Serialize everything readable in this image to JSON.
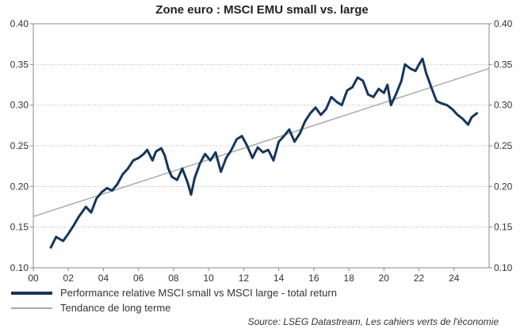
{
  "chart_data": {
    "type": "line",
    "title": "Zone euro : MSCI EMU small vs. large",
    "x_ticks": [
      "00",
      "02",
      "04",
      "06",
      "08",
      "10",
      "12",
      "14",
      "16",
      "18",
      "20",
      "22",
      "24"
    ],
    "y_ticks": [
      "0.10",
      "0.15",
      "0.20",
      "0.25",
      "0.30",
      "0.35",
      "0.40"
    ],
    "xlim": [
      2000,
      2026
    ],
    "ylim": [
      0.1,
      0.4
    ],
    "y_axis_both_sides": true,
    "grid": "horizontal",
    "legend_position": "bottom-left",
    "series": [
      {
        "name": "Performance relative MSCI small vs MSCI  large - total return",
        "color": "#14365e",
        "x": [
          2001.0,
          2001.3,
          2001.7,
          2002.0,
          2002.3,
          2002.6,
          2003.0,
          2003.3,
          2003.6,
          2003.9,
          2004.2,
          2004.5,
          2004.8,
          2005.1,
          2005.4,
          2005.7,
          2006.0,
          2006.3,
          2006.5,
          2006.8,
          2007.0,
          2007.3,
          2007.5,
          2007.7,
          2007.9,
          2008.2,
          2008.5,
          2008.8,
          2009.0,
          2009.2,
          2009.5,
          2009.8,
          2010.1,
          2010.4,
          2010.7,
          2011.0,
          2011.3,
          2011.6,
          2011.9,
          2012.2,
          2012.5,
          2012.8,
          2013.1,
          2013.4,
          2013.7,
          2014.0,
          2014.3,
          2014.6,
          2014.9,
          2015.2,
          2015.5,
          2015.8,
          2016.1,
          2016.4,
          2016.7,
          2017.0,
          2017.3,
          2017.6,
          2017.9,
          2018.2,
          2018.5,
          2018.8,
          2019.1,
          2019.4,
          2019.7,
          2020.0,
          2020.2,
          2020.4,
          2020.7,
          2021.0,
          2021.2,
          2021.5,
          2021.8,
          2022.0,
          2022.2,
          2022.4,
          2022.7,
          2023.0,
          2023.3,
          2023.6,
          2023.9,
          2024.2,
          2024.5,
          2024.8,
          2025.0,
          2025.3
        ],
        "values": [
          0.125,
          0.138,
          0.133,
          0.142,
          0.152,
          0.163,
          0.175,
          0.168,
          0.185,
          0.193,
          0.198,
          0.195,
          0.203,
          0.215,
          0.222,
          0.232,
          0.235,
          0.24,
          0.245,
          0.232,
          0.243,
          0.247,
          0.238,
          0.222,
          0.212,
          0.208,
          0.222,
          0.205,
          0.19,
          0.21,
          0.228,
          0.24,
          0.232,
          0.242,
          0.218,
          0.235,
          0.245,
          0.258,
          0.262,
          0.25,
          0.235,
          0.248,
          0.242,
          0.245,
          0.232,
          0.255,
          0.262,
          0.27,
          0.255,
          0.265,
          0.28,
          0.29,
          0.297,
          0.288,
          0.295,
          0.31,
          0.304,
          0.3,
          0.318,
          0.322,
          0.334,
          0.33,
          0.313,
          0.31,
          0.32,
          0.315,
          0.325,
          0.3,
          0.314,
          0.33,
          0.35,
          0.345,
          0.342,
          0.35,
          0.357,
          0.34,
          0.322,
          0.305,
          0.302,
          0.3,
          0.295,
          0.288,
          0.283,
          0.276,
          0.285,
          0.29
        ]
      },
      {
        "name": "Tendance de long terme",
        "color": "#aaaaaa",
        "x": [
          2000,
          2026
        ],
        "values": [
          0.163,
          0.345
        ]
      }
    ]
  },
  "source": "Source: LSEG Datastream, Les cahiers verts de l'économie"
}
